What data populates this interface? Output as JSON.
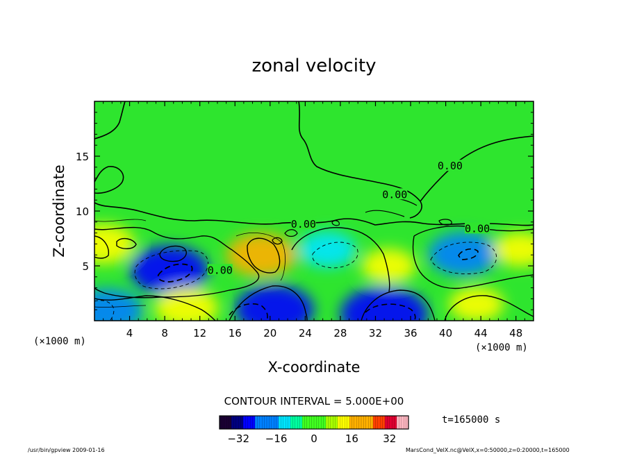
{
  "chart_data": {
    "type": "heatmap",
    "title": "zonal velocity",
    "xlabel": "X-coordinate",
    "ylabel": "Z-coordinate",
    "x_unit_left": "(×1000 m)",
    "x_unit_right": "(×1000 m)",
    "xlim": [
      0,
      50
    ],
    "ylim": [
      0,
      20
    ],
    "x_ticks": [
      4,
      8,
      12,
      16,
      20,
      24,
      28,
      32,
      36,
      40,
      44,
      48
    ],
    "y_ticks": [
      5,
      10,
      15
    ],
    "contour_labels": [
      {
        "text": "0.00",
        "x": 34.2,
        "z": 11.5
      },
      {
        "text": "0.00",
        "x": 40.5,
        "z": 14.1
      },
      {
        "text": "0.00",
        "x": 23.8,
        "z": 8.8
      },
      {
        "text": "0.00",
        "x": 43.6,
        "z": 8.4
      },
      {
        "text": "0.00",
        "x": 14.3,
        "z": 4.6
      }
    ],
    "contour_interval": "CONTOUR INTERVAL = 5.000E+00",
    "time_label": "t=165000 s",
    "colorbar": {
      "min": -40,
      "max": 40,
      "ticks": [
        -32,
        -16,
        0,
        16,
        32
      ],
      "colors": [
        "#1a0033",
        "#000080",
        "#0000ff",
        "#0080ff",
        "#00e5ff",
        "#00ffa0",
        "#40ff20",
        "#a8ff00",
        "#ffff00",
        "#ffb000",
        "#ff4000",
        "#e00030",
        "#ffb6c1"
      ]
    },
    "features": [
      {
        "sign": "positive",
        "x": 1,
        "z": 7,
        "value": 10
      },
      {
        "sign": "negative",
        "x": 8.5,
        "z": 4.6,
        "value": -15
      },
      {
        "sign": "positive",
        "x": 10.5,
        "z": 1.2,
        "value": 10
      },
      {
        "sign": "positive",
        "x": 19,
        "z": 6,
        "value": 12
      },
      {
        "sign": "negative",
        "x": 1.5,
        "z": 0.9,
        "value": -12
      },
      {
        "sign": "negative",
        "x": 26.5,
        "z": 6.5,
        "value": -8
      },
      {
        "sign": "negative",
        "x": 20.5,
        "z": 1,
        "value": -15
      },
      {
        "sign": "positive",
        "x": 33.5,
        "z": 5,
        "value": 7
      },
      {
        "sign": "negative",
        "x": 33,
        "z": 0.6,
        "value": -18
      },
      {
        "sign": "negative",
        "x": 42,
        "z": 6.1,
        "value": -12
      },
      {
        "sign": "positive",
        "x": 43.5,
        "z": 1.5,
        "value": 7
      },
      {
        "sign": "positive",
        "x": 48.5,
        "z": 6.5,
        "value": 7
      }
    ]
  },
  "footer": {
    "left": "/usr/bin/gpview  2009-01-16",
    "right": "MarsCond_VelX.nc@VelX,x=0:50000,z=0:20000,t=165000"
  }
}
